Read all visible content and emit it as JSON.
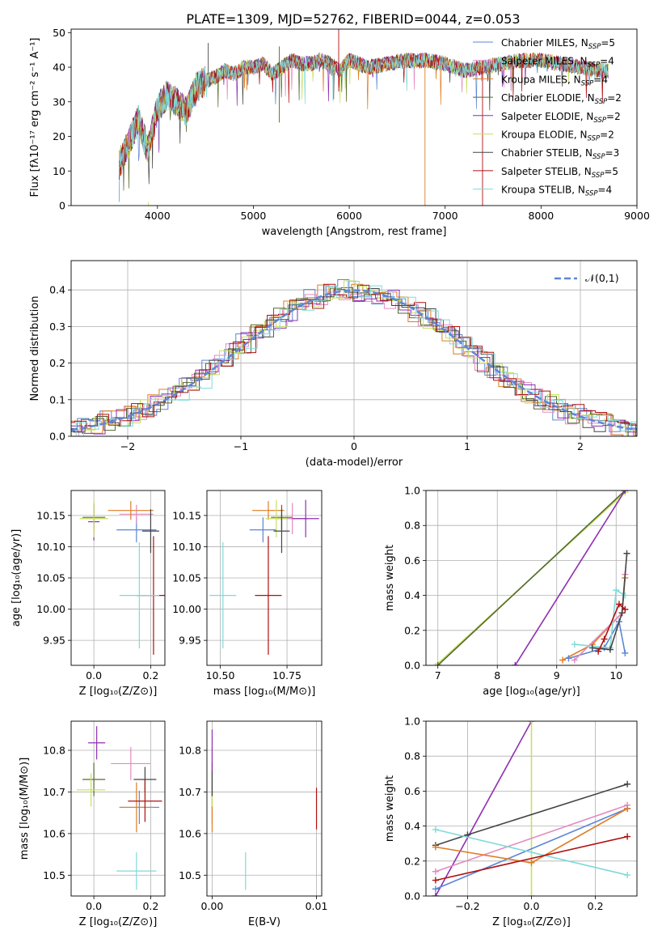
{
  "figure_title": "PLATE=1309, MJD=52762, FIBERID=0044, z=0.053",
  "colors": {
    "chabrier_miles": "#5b86d6",
    "salpeter_miles": "#e38ac0",
    "kroupa_miles": "#e07c22",
    "chabrier_elodie": "#556b2f",
    "salpeter_elodie": "#8e2fb0",
    "kroupa_elodie": "#c8e060",
    "chabrier_stelib": "#454545",
    "salpeter_stelib": "#b01010",
    "kroupa_stelib": "#7fdad8",
    "grid": "#b0b0b0",
    "normal_curve": "#5b86d6"
  },
  "chart_data": [
    {
      "id": "spectrum",
      "type": "line",
      "title": "PLATE=1309, MJD=52762, FIBERID=0044, z=0.053",
      "xlabel": "wavelength [Angstrom, rest frame]",
      "ylabel": "Flux [fλ10⁻¹⁷ erg cm⁻² s⁻¹ A⁻¹]",
      "xlim": [
        3100,
        9000
      ],
      "ylim": [
        0,
        51
      ],
      "xticks": [
        "4000",
        "5000",
        "6000",
        "7000",
        "8000",
        "9000"
      ],
      "yticks": [
        "0",
        "10",
        "20",
        "30",
        "40",
        "50"
      ],
      "grid": false,
      "legend_position": "top-right",
      "legend": [
        {
          "label": "Chabrier MILES, N",
          "sub": "SSP",
          "tail": "=5",
          "color": "#5b86d6"
        },
        {
          "label": "Salpeter MILES, N",
          "sub": "SSP",
          "tail": "=4",
          "color": "#e38ac0"
        },
        {
          "label": "Kroupa MILES, N",
          "sub": "SSP",
          "tail": "=4",
          "color": "#e07c22"
        },
        {
          "label": "Chabrier ELODIE, N",
          "sub": "SSP",
          "tail": "=2",
          "color": "#556b2f"
        },
        {
          "label": "Salpeter ELODIE, N",
          "sub": "SSP",
          "tail": "=2",
          "color": "#8e2fb0"
        },
        {
          "label": "Kroupa ELODIE, N",
          "sub": "SSP",
          "tail": "=2",
          "color": "#c8e060"
        },
        {
          "label": "Chabrier STELIB, N",
          "sub": "SSP",
          "tail": "=3",
          "color": "#454545"
        },
        {
          "label": "Salpeter STELIB, N",
          "sub": "SSP",
          "tail": "=5",
          "color": "#b01010"
        },
        {
          "label": "Kroupa STELIB, N",
          "sub": "SSP",
          "tail": "=4",
          "color": "#7fdad8"
        }
      ],
      "continuum": [
        [
          3600,
          12
        ],
        [
          3700,
          18
        ],
        [
          3800,
          25
        ],
        [
          3900,
          16
        ],
        [
          4000,
          28
        ],
        [
          4100,
          32
        ],
        [
          4200,
          30
        ],
        [
          4300,
          27
        ],
        [
          4400,
          34
        ],
        [
          4500,
          36
        ],
        [
          4600,
          37
        ],
        [
          4700,
          39
        ],
        [
          4800,
          38
        ],
        [
          4900,
          40
        ],
        [
          5000,
          40
        ],
        [
          5100,
          41
        ],
        [
          5200,
          38
        ],
        [
          5300,
          40
        ],
        [
          5400,
          42
        ],
        [
          5500,
          41
        ],
        [
          5600,
          41
        ],
        [
          5700,
          42
        ],
        [
          5800,
          41
        ],
        [
          5900,
          39
        ],
        [
          6000,
          42
        ],
        [
          6200,
          40
        ],
        [
          6400,
          41
        ],
        [
          6600,
          42
        ],
        [
          6800,
          42
        ],
        [
          7000,
          41
        ],
        [
          7200,
          39
        ],
        [
          7400,
          40
        ],
        [
          7600,
          41
        ],
        [
          7800,
          42
        ],
        [
          8000,
          42
        ],
        [
          8200,
          41
        ],
        [
          8400,
          40
        ],
        [
          8600,
          39
        ],
        [
          8700,
          39
        ]
      ]
    },
    {
      "id": "residuals",
      "type": "bar",
      "xlabel": "(data-model)/error",
      "ylabel": "Normed distribution",
      "xlim": [
        -2.5,
        2.5
      ],
      "ylim": [
        0,
        0.48
      ],
      "xticks": [
        "−2",
        "−1",
        "0",
        "1",
        "2"
      ],
      "yticks": [
        "0.0",
        "0.1",
        "0.2",
        "0.3",
        "0.4"
      ],
      "grid": true,
      "legend_position": "top-right",
      "legend_label": "𝒩(0,1)",
      "bin_width": 0.1
    },
    {
      "id": "z_vs_age",
      "type": "scatter",
      "xlabel": "Z [log₁₀(Z/Z⊙)]",
      "ylabel": "age  [log₁₀(age/yr)]",
      "xlim": [
        -0.08,
        0.25
      ],
      "ylim": [
        9.91,
        10.19
      ],
      "xticks": [
        "0.0",
        "0.2"
      ],
      "yticks": [
        "9.95",
        "10.00",
        "10.05",
        "10.10",
        "10.15"
      ],
      "grid": true,
      "points": [
        {
          "x": 0.15,
          "y": 10.127,
          "ex": 0.07,
          "ey": 0.02,
          "color": "#5b86d6"
        },
        {
          "x": 0.15,
          "y": 10.152,
          "ex": 0.06,
          "ey": 0.015,
          "color": "#e38ac0"
        },
        {
          "x": 0.13,
          "y": 10.158,
          "ex": 0.08,
          "ey": 0.015,
          "color": "#e07c22"
        },
        {
          "x": 0.0,
          "y": 10.147,
          "ex": 0.04,
          "ey": 0.02,
          "color": "#556b2f"
        },
        {
          "x": 0.0,
          "y": 10.14,
          "ex": 0.02,
          "ey": 0.03,
          "color": "#8e2fb0"
        },
        {
          "x": 0.0,
          "y": 10.145,
          "ex": 0.05,
          "ey": 0.03,
          "color": "#c8e060"
        },
        {
          "x": 0.2,
          "y": 10.125,
          "ex": 0.03,
          "ey": 0.035,
          "color": "#454545"
        },
        {
          "x": 0.21,
          "y": 10.022,
          "ex": 0.06,
          "ey": 0.095,
          "color": "#b01010"
        },
        {
          "x": 0.16,
          "y": 10.022,
          "ex": 0.07,
          "ey": 0.085,
          "color": "#7fdad8"
        }
      ]
    },
    {
      "id": "mass_vs_age",
      "type": "scatter",
      "xlabel": "mass [log₁₀(M/M⊙)]",
      "ylabel": "",
      "xlim": [
        10.45,
        10.88
      ],
      "ylim": [
        9.91,
        10.19
      ],
      "xticks": [
        "10.50",
        "10.75"
      ],
      "yticks": [
        "9.95",
        "10.00",
        "10.05",
        "10.10",
        "10.15"
      ],
      "grid": true,
      "points": [
        {
          "x": 10.66,
          "y": 10.127,
          "ex": 0.05,
          "ey": 0.02,
          "color": "#5b86d6"
        },
        {
          "x": 10.77,
          "y": 10.145,
          "ex": 0.06,
          "ey": 0.025,
          "color": "#e38ac0"
        },
        {
          "x": 10.68,
          "y": 10.158,
          "ex": 0.06,
          "ey": 0.015,
          "color": "#e07c22"
        },
        {
          "x": 10.73,
          "y": 10.147,
          "ex": 0.04,
          "ey": 0.02,
          "color": "#556b2f"
        },
        {
          "x": 10.82,
          "y": 10.145,
          "ex": 0.05,
          "ey": 0.03,
          "color": "#8e2fb0"
        },
        {
          "x": 10.71,
          "y": 10.145,
          "ex": 0.04,
          "ey": 0.03,
          "color": "#c8e060"
        },
        {
          "x": 10.73,
          "y": 10.125,
          "ex": 0.03,
          "ey": 0.035,
          "color": "#454545"
        },
        {
          "x": 10.68,
          "y": 10.022,
          "ex": 0.05,
          "ey": 0.095,
          "color": "#b01010"
        },
        {
          "x": 10.51,
          "y": 10.022,
          "ex": 0.05,
          "ey": 0.085,
          "color": "#7fdad8"
        }
      ]
    },
    {
      "id": "age_vs_weight",
      "type": "line",
      "xlabel": "age  [log₁₀(age/yr)]",
      "ylabel": "mass weight",
      "xlim": [
        6.8,
        10.35
      ],
      "ylim": [
        0,
        1.0
      ],
      "xticks": [
        "7",
        "8",
        "9",
        "10"
      ],
      "yticks": [
        "0.0",
        "0.2",
        "0.4",
        "0.6",
        "0.8",
        "1.0"
      ],
      "grid": true,
      "series": [
        {
          "color": "#c8e060",
          "points": [
            [
              7.0,
              0.01
            ],
            [
              10.15,
              0.99
            ]
          ]
        },
        {
          "color": "#556b2f",
          "points": [
            [
              7.0,
              0.0
            ],
            [
              10.15,
              1.0
            ]
          ]
        },
        {
          "color": "#8e2fb0",
          "points": [
            [
              8.3,
              0.0
            ],
            [
              10.15,
              1.0
            ]
          ]
        },
        {
          "color": "#e07c22",
          "points": [
            [
              9.1,
              0.03
            ],
            [
              9.6,
              0.12
            ],
            [
              10.1,
              0.3
            ],
            [
              10.15,
              0.5
            ]
          ]
        },
        {
          "color": "#5b86d6",
          "points": [
            [
              9.2,
              0.04
            ],
            [
              9.8,
              0.1
            ],
            [
              10.05,
              0.25
            ],
            [
              10.15,
              0.07
            ]
          ]
        },
        {
          "color": "#e38ac0",
          "points": [
            [
              9.3,
              0.03
            ],
            [
              10.1,
              0.3
            ],
            [
              10.15,
              0.52
            ]
          ]
        },
        {
          "color": "#7fdad8",
          "points": [
            [
              9.3,
              0.12
            ],
            [
              9.9,
              0.1
            ],
            [
              10.0,
              0.43
            ],
            [
              10.15,
              0.4
            ]
          ]
        },
        {
          "color": "#454545",
          "points": [
            [
              9.6,
              0.1
            ],
            [
              9.9,
              0.09
            ],
            [
              10.1,
              0.3
            ],
            [
              10.18,
              0.64
            ]
          ]
        },
        {
          "color": "#b01010",
          "points": [
            [
              9.7,
              0.08
            ],
            [
              9.8,
              0.15
            ],
            [
              10.05,
              0.35
            ],
            [
              10.15,
              0.32
            ]
          ]
        }
      ]
    },
    {
      "id": "z_vs_mass",
      "type": "scatter",
      "xlabel": "Z [log₁₀(Z/Z⊙)]",
      "ylabel": "mass [log₁₀(M/M⊙)]",
      "xlim": [
        -0.08,
        0.25
      ],
      "ylim": [
        10.45,
        10.87
      ],
      "xticks": [
        "0.0",
        "0.2"
      ],
      "yticks": [
        "10.5",
        "10.6",
        "10.7",
        "10.8"
      ],
      "grid": true,
      "points": [
        {
          "x": 0.16,
          "y": 10.663,
          "ex": 0.07,
          "ey": 0.04,
          "color": "#5b86d6"
        },
        {
          "x": 0.13,
          "y": 10.768,
          "ex": 0.07,
          "ey": 0.04,
          "color": "#e38ac0"
        },
        {
          "x": 0.15,
          "y": 10.663,
          "ex": 0.06,
          "ey": 0.06,
          "color": "#e07c22"
        },
        {
          "x": 0.0,
          "y": 10.73,
          "ex": 0.04,
          "ey": 0.04,
          "color": "#556b2f"
        },
        {
          "x": 0.01,
          "y": 10.818,
          "ex": 0.03,
          "ey": 0.04,
          "color": "#8e2fb0"
        },
        {
          "x": -0.01,
          "y": 10.705,
          "ex": 0.05,
          "ey": 0.04,
          "color": "#c8e060"
        },
        {
          "x": 0.18,
          "y": 10.73,
          "ex": 0.04,
          "ey": 0.03,
          "color": "#454545"
        },
        {
          "x": 0.18,
          "y": 10.678,
          "ex": 0.06,
          "ey": 0.05,
          "color": "#b01010"
        },
        {
          "x": 0.15,
          "y": 10.51,
          "ex": 0.07,
          "ey": 0.045,
          "color": "#7fdad8"
        }
      ]
    },
    {
      "id": "ebv_vs_mass",
      "type": "scatter",
      "xlabel": "E(B-V)",
      "ylabel": "",
      "xlim": [
        -0.0005,
        0.0105
      ],
      "ylim": [
        10.45,
        10.87
      ],
      "xticks": [
        "0.00",
        "0.01"
      ],
      "yticks": [
        "10.5",
        "10.6",
        "10.7",
        "10.8"
      ],
      "grid": true,
      "points": [
        {
          "x": 0.0,
          "y": 10.663,
          "ex": 0.0,
          "ey": 0.04,
          "color": "#5b86d6"
        },
        {
          "x": 0.0,
          "y": 10.768,
          "ex": 0.0,
          "ey": 0.04,
          "color": "#e38ac0"
        },
        {
          "x": 0.0,
          "y": 10.663,
          "ex": 0.0,
          "ey": 0.06,
          "color": "#e07c22"
        },
        {
          "x": 0.0,
          "y": 10.73,
          "ex": 0.0,
          "ey": 0.04,
          "color": "#556b2f"
        },
        {
          "x": 0.0,
          "y": 10.8,
          "ex": 0.0,
          "ey": 0.05,
          "color": "#8e2fb0"
        },
        {
          "x": 0.0,
          "y": 10.705,
          "ex": 0.0,
          "ey": 0.04,
          "color": "#c8e060"
        },
        {
          "x": 0.0,
          "y": 10.72,
          "ex": 0.0,
          "ey": 0.03,
          "color": "#454545"
        },
        {
          "x": 0.01,
          "y": 10.66,
          "ex": 0.0,
          "ey": 0.05,
          "color": "#b01010"
        },
        {
          "x": 0.0032,
          "y": 10.51,
          "ex": 0.0,
          "ey": 0.045,
          "color": "#7fdad8"
        }
      ]
    },
    {
      "id": "z_vs_weight",
      "type": "line",
      "xlabel": "Z [log₁₀(Z/Z⊙)]",
      "ylabel": "mass weight",
      "xlim": [
        -0.33,
        0.33
      ],
      "ylim": [
        0,
        1.0
      ],
      "xticks": [
        "−0.2",
        "0.0",
        "0.2"
      ],
      "yticks": [
        "0.0",
        "0.2",
        "0.4",
        "0.6",
        "0.8",
        "1.0"
      ],
      "grid": true,
      "series": [
        {
          "color": "#8e2fb0",
          "points": [
            [
              -0.3,
              0.0
            ],
            [
              0.0,
              1.0
            ]
          ]
        },
        {
          "color": "#c8e060",
          "points": [
            [
              0.0,
              0.0
            ],
            [
              0.0,
              1.0
            ]
          ]
        },
        {
          "color": "#454545",
          "points": [
            [
              -0.3,
              0.29
            ],
            [
              -0.2,
              0.35
            ],
            [
              0.3,
              0.64
            ]
          ]
        },
        {
          "color": "#e38ac0",
          "points": [
            [
              -0.3,
              0.14
            ],
            [
              0.3,
              0.52
            ]
          ]
        },
        {
          "color": "#5b86d6",
          "points": [
            [
              -0.3,
              0.04
            ],
            [
              0.3,
              0.5
            ]
          ]
        },
        {
          "color": "#e07c22",
          "points": [
            [
              -0.3,
              0.28
            ],
            [
              0.0,
              0.19
            ],
            [
              0.3,
              0.5
            ]
          ]
        },
        {
          "color": "#7fdad8",
          "points": [
            [
              -0.3,
              0.38
            ],
            [
              0.3,
              0.12
            ]
          ]
        },
        {
          "color": "#b01010",
          "points": [
            [
              -0.3,
              0.09
            ],
            [
              0.3,
              0.34
            ]
          ]
        }
      ]
    }
  ]
}
